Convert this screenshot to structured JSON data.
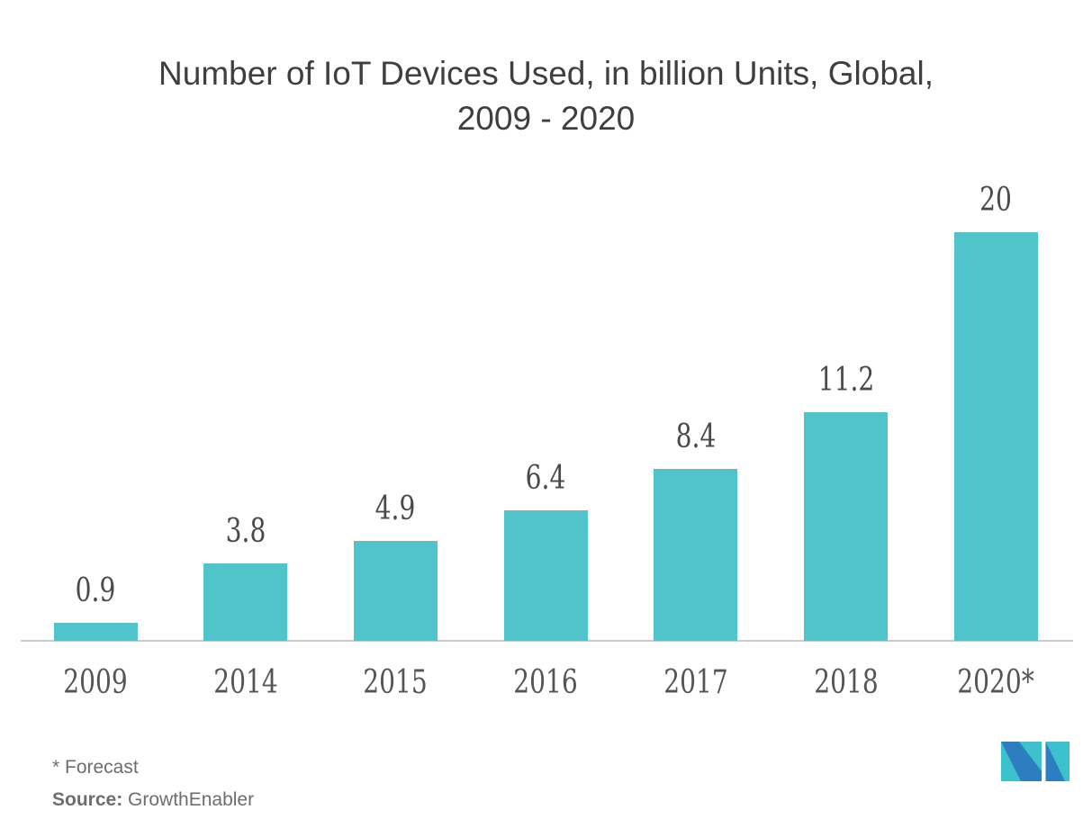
{
  "title": {
    "line1": "Number of IoT Devices Used, in billion Units, Global,",
    "line2": "2009 - 2020"
  },
  "chart_data": {
    "type": "bar",
    "title": "Number of IoT Devices Used, in billion Units, Global, 2009 - 2020",
    "categories": [
      "2009",
      "2014",
      "2015",
      "2016",
      "2017",
      "2018",
      "2020*"
    ],
    "values": [
      0.9,
      3.8,
      4.9,
      6.4,
      8.4,
      11.2,
      20
    ],
    "value_labels": [
      "0.9",
      "3.8",
      "4.9",
      "6.4",
      "8.4",
      "11.2",
      "20"
    ],
    "unit": "billion units",
    "xlabel": "",
    "ylabel": "",
    "ylim": [
      0,
      20
    ],
    "grid": false,
    "legend": "none",
    "bar_color": "#4FC4CB"
  },
  "footer": {
    "forecast_note": "* Forecast",
    "source_label": "Source:",
    "source_value": "GrowthEnabler"
  },
  "logo": {
    "name": "Mordor Intelligence",
    "teal": "#3DC2CD",
    "blue": "#2C7EC0"
  },
  "colors": {
    "background": "#FFFFFF",
    "title_text": "#3F3F3F",
    "value_label_text": "#4A4A4A",
    "axis_label_text": "#555555",
    "axis_line": "#CBCBCB",
    "footer_text": "#6E6E6E"
  }
}
